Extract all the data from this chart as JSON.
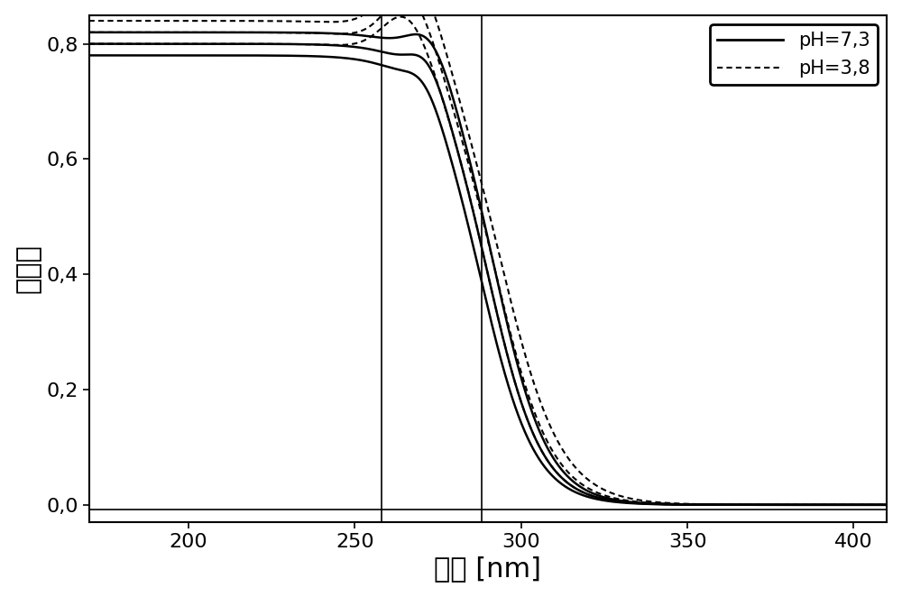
{
  "xlim": [
    170,
    410
  ],
  "ylim": [
    -0.03,
    0.85
  ],
  "xticks": [
    200,
    250,
    300,
    350,
    400
  ],
  "yticks": [
    0.0,
    0.2,
    0.4,
    0.6,
    0.8
  ],
  "ytick_labels": [
    "0,0",
    "0,2",
    "0,4",
    "0,6",
    "0,8"
  ],
  "xlabel": "波長 [nm]",
  "ylabel": "消光度",
  "vlines": [
    258,
    288
  ],
  "hline": -0.008,
  "legend_solid": "pH=7,3",
  "legend_dotted": "pH=3,8",
  "bg_color": "#ffffff",
  "line_color": "#000000",
  "figsize": [
    10.0,
    6.62
  ],
  "dpi": 100
}
